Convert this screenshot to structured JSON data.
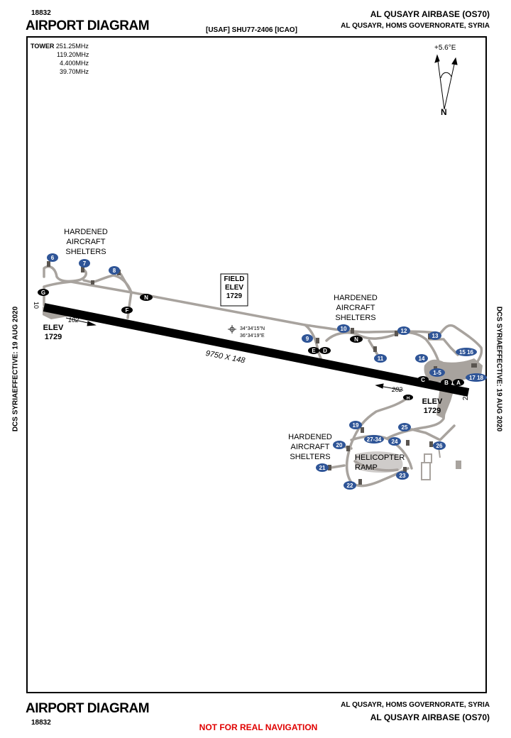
{
  "header": {
    "doc_number": "18832",
    "title": "AIRPORT DIAGRAM",
    "usaf_code": "[USAF] SHU77-2406 [ICAO]",
    "airbase": "AL QUSAYR AIRBASE (OS70)",
    "location": "AL QUSAYR, HOMS GOVERNORATE,  SYRIA"
  },
  "footer": {
    "title": "AIRPORT DIAGRAM",
    "doc_number": "18832",
    "location": "AL QUSAYR, HOMS GOVERNORATE,  SYRIA",
    "airbase": "AL QUSAYR AIRBASE (OS70)",
    "warning": "NOT FOR REAL NAVIGATION"
  },
  "side_labels": {
    "left": "DCS SYRIAEFFECTIVE: 19 AUG 2020",
    "right": "DCS SYRIAEFFECTIVE: 19 AUG 2020"
  },
  "frequencies": {
    "label": "TOWER",
    "values": [
      "251.25MHz",
      "119.20MHz",
      "4.400MHz",
      "39.70MHz"
    ]
  },
  "north_arrow": {
    "variation": "+5.6°E",
    "label": "N"
  },
  "field_elevation": {
    "line1": "FIELD",
    "line2": "ELEV",
    "value": "1729"
  },
  "runway": {
    "dimensions": "9750  X 148",
    "end_west": {
      "number": "10",
      "heading": "102",
      "elev_label": "ELEV",
      "elev": "1729"
    },
    "end_east": {
      "number": "28",
      "heading": "282",
      "elev_label": "ELEV",
      "elev": "1729"
    }
  },
  "coordinates": {
    "lat": "34°34'15\"N",
    "lon": "36°34'19\"E"
  },
  "areas": {
    "has_west": {
      "l1": "HARDENED",
      "l2": "AIRCRAFT",
      "l3": "SHELTERS"
    },
    "has_north": {
      "l1": "HARDENED",
      "l2": "AIRCRAFT",
      "l3": "SHELTERS"
    },
    "has_south": {
      "l1": "HARDENED",
      "l2": "AIRCRAFT",
      "l3": "SHELTERS"
    },
    "heli": {
      "l1": "HELICOPTER",
      "l2": "RAMP"
    }
  },
  "taxiways": [
    "G",
    "F",
    "N",
    "N",
    "E",
    "D",
    "C",
    "B",
    "A",
    "H"
  ],
  "parking": [
    "6",
    "7",
    "8",
    "9",
    "10",
    "11",
    "12",
    "13",
    "14",
    "15 16",
    "17 18",
    "1-5",
    "19",
    "20",
    "21",
    "22",
    "23",
    "24",
    "25",
    "26",
    "27-34"
  ],
  "colors": {
    "runway": "#000000",
    "taxiway": "#a8a39e",
    "parking_badge": "#2f5597",
    "warning": "#e00000"
  }
}
